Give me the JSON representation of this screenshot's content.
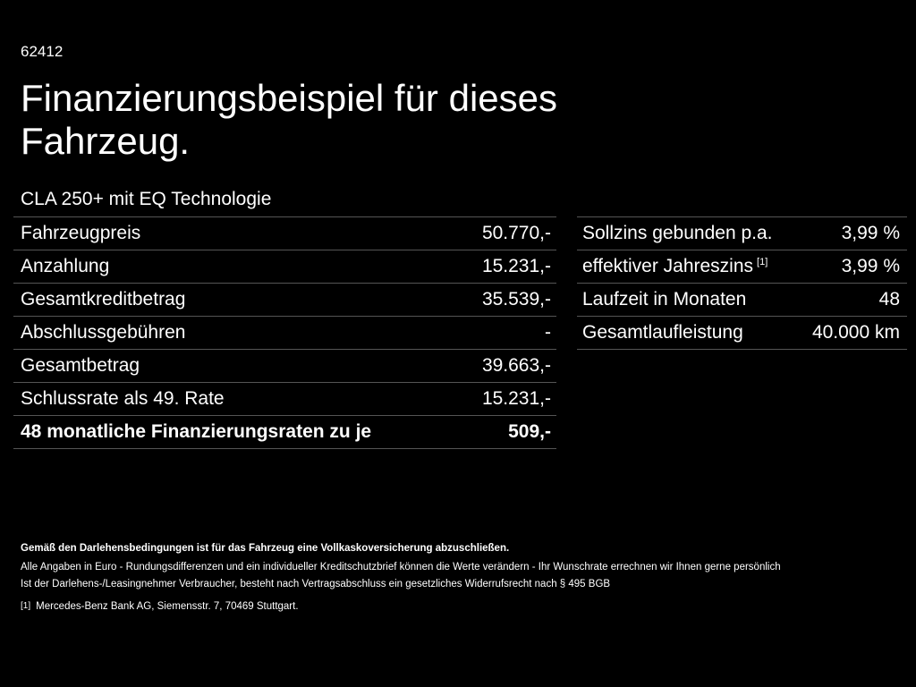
{
  "code": "62412",
  "title": "Finanzierungsbeispiel für dieses Fahrzeug.",
  "model": "CLA 250+ mit EQ Technologie",
  "left_table": [
    {
      "label": "Fahrzeugpreis",
      "value": "50.770,-"
    },
    {
      "label": "Anzahlung",
      "value": "15.231,-"
    },
    {
      "label": "Gesamtkreditbetrag",
      "value": "35.539,-"
    },
    {
      "label": "Abschlussgebühren",
      "value": "-"
    },
    {
      "label": "Gesamtbetrag",
      "value": "39.663,-"
    },
    {
      "label": "Schlussrate als 49. Rate",
      "value": "15.231,-"
    },
    {
      "label": "48 monatliche Finanzierungsraten zu je",
      "value": "509,-"
    }
  ],
  "right_table": [
    {
      "label": "Sollzins gebunden p.a.",
      "value": "3,99 %"
    },
    {
      "label": "effektiver Jahreszins",
      "ref": "[1]",
      "value": "3,99 %"
    },
    {
      "label": "Laufzeit in Monaten",
      "value": "48"
    },
    {
      "label": "Gesamtlaufleistung",
      "value": "40.000 km"
    }
  ],
  "footer": {
    "insurance": "Gemäß den Darlehensbedingungen ist für das Fahrzeug eine Vollkaskoversicherung abzuschließen.",
    "note1": "Alle Angaben in Euro - Rundungsdifferenzen und ein individueller Kreditschutzbrief können die Werte verändern - Ihr Wunschrate errechnen wir Ihnen gerne persönlich",
    "note2": "Ist der Darlehens-/Leasingnehmer Verbraucher, besteht nach Vertragsabschluss ein gesetzliches Widerrufsrecht nach § 495 BGB",
    "ref": "[1]",
    "ref_text": "Mercedes-Benz Bank AG, Siemensstr. 7, 70469 Stuttgart."
  }
}
